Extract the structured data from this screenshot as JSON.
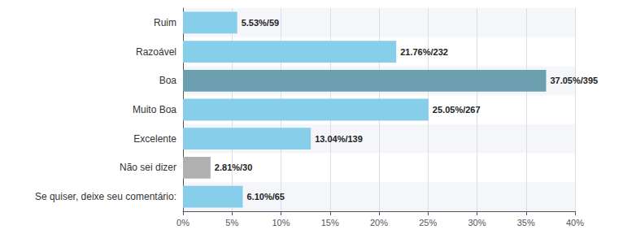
{
  "chart_data": {
    "type": "bar",
    "orientation": "horizontal",
    "categories": [
      "Ruim",
      "Razoável",
      "Boa",
      "Muito Boa",
      "Excelente",
      "Não sei dizer",
      "Se quiser, deixe seu comentário:"
    ],
    "values": [
      5.53,
      21.76,
      37.05,
      25.05,
      13.04,
      2.81,
      6.1
    ],
    "value_labels": [
      "5.53%/59",
      "21.76%/232",
      "37.05%/395",
      "25.05%/267",
      "13.04%/139",
      "2.81%/30",
      "6.10%/65"
    ],
    "colors": [
      "#87CEEB",
      "#87CEEB",
      "#6CA0B0",
      "#87CEEB",
      "#87CEEB",
      "#B0B0B0",
      "#87CEEB"
    ],
    "xlim": [
      0,
      40
    ],
    "xticks": [
      {
        "value": 0,
        "label": "0%"
      },
      {
        "value": 5,
        "label": "5%"
      },
      {
        "value": 10,
        "label": "10%"
      },
      {
        "value": 15,
        "label": "15%"
      },
      {
        "value": 20,
        "label": "20%"
      },
      {
        "value": 25,
        "label": "25%"
      },
      {
        "value": 30,
        "label": "30%"
      },
      {
        "value": 35,
        "label": "35%"
      },
      {
        "value": 40,
        "label": "40%"
      }
    ],
    "grid": true,
    "data_labels": true
  }
}
